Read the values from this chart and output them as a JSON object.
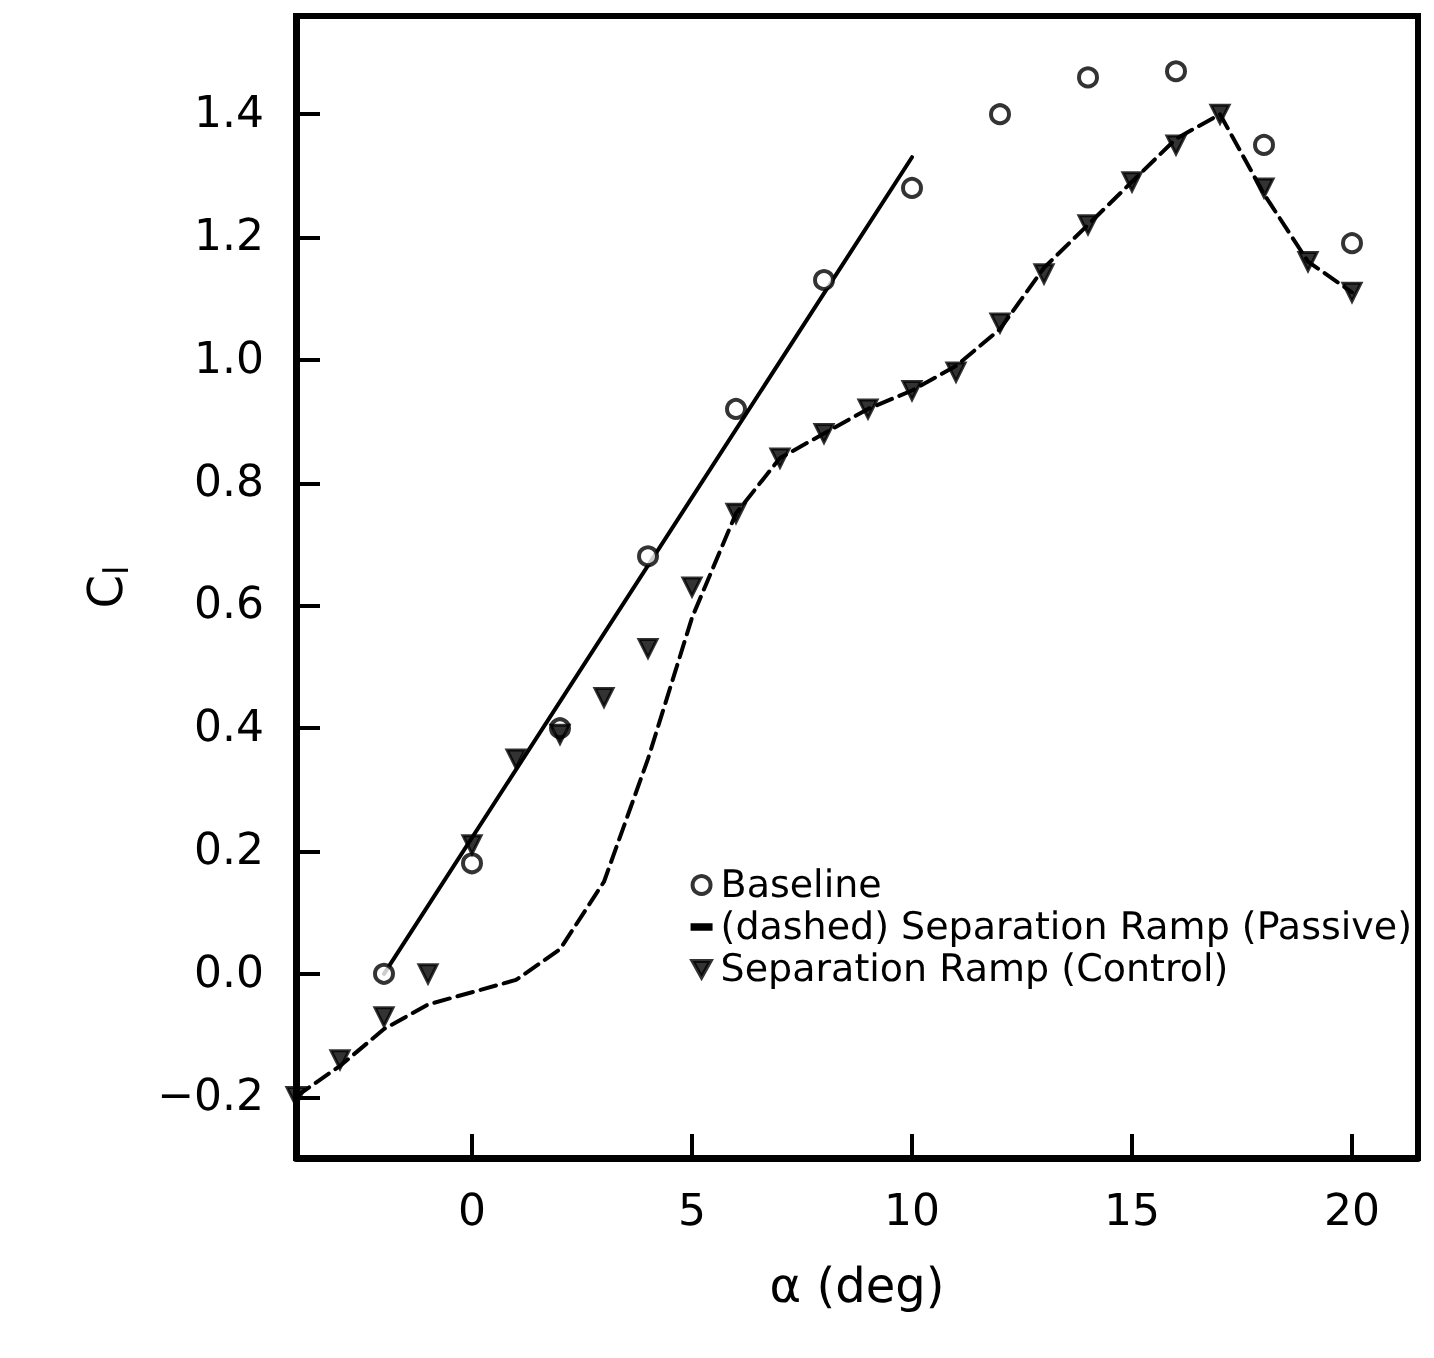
{
  "chart_data": {
    "type": "scatter",
    "xlabel": "α (deg)",
    "ylabel": "C$_{l}$",
    "xlim": [
      -4,
      21.5
    ],
    "ylim": [
      -0.3,
      1.56
    ],
    "xticks": [
      0,
      5,
      10,
      15,
      20
    ],
    "yticks": [
      {
        "value": -0.2,
        "label": "−0.2"
      },
      {
        "value": 0,
        "label": "0.0"
      },
      {
        "value": 0.2,
        "label": "0.2"
      },
      {
        "value": 0.4,
        "label": "0.4"
      },
      {
        "value": 0.6,
        "label": "0.6"
      },
      {
        "value": 0.8,
        "label": "0.8"
      },
      {
        "value": 1.0,
        "label": "1.0"
      },
      {
        "value": 1.2,
        "label": "1.2"
      },
      {
        "value": 1.4,
        "label": "1.4"
      }
    ],
    "grid": false,
    "legend": "bottom right",
    "series": [
      {
        "name": "Baseline",
        "marker": "circle",
        "color": "#000000",
        "x": [
          -2,
          0,
          2,
          4,
          6,
          8,
          10,
          12,
          14,
          16,
          18,
          20
        ],
        "values": [
          0.0,
          0.18,
          0.4,
          0.68,
          0.92,
          1.13,
          1.28,
          1.4,
          1.46,
          1.47,
          1.35,
          1.19
        ]
      },
      {
        "name": "(dashed) Separation Ramp (Passive)",
        "type": "line",
        "marker": "none",
        "line_style": "dashed",
        "color": "#000000",
        "x": [
          -4,
          -3,
          -2,
          -1,
          0,
          1,
          2,
          3,
          4,
          5,
          6,
          7,
          8,
          9,
          10,
          11,
          12,
          13,
          14,
          15,
          16,
          17,
          18,
          19,
          20
        ],
        "values": [
          -0.2,
          -0.15,
          -0.09,
          -0.05,
          -0.03,
          -0.01,
          0.04,
          0.15,
          0.35,
          0.58,
          0.75,
          0.84,
          0.88,
          0.92,
          0.95,
          0.99,
          1.05,
          1.15,
          1.22,
          1.29,
          1.36,
          1.4,
          1.27,
          1.16,
          1.11
        ]
      },
      {
        "name": "Separation Ramp (Control)",
        "marker": "triangle",
        "color": "#000000",
        "x": [
          -4,
          -3,
          -2,
          -1,
          0,
          1,
          2,
          3,
          4,
          5,
          6,
          7,
          8,
          9,
          10,
          11,
          12,
          13,
          14,
          15,
          16,
          17,
          18,
          19,
          20
        ],
        "values": [
          -0.2,
          -0.14,
          -0.07,
          0.0,
          0.21,
          0.35,
          0.39,
          0.45,
          0.53,
          0.63,
          0.75,
          0.84,
          0.88,
          0.92,
          0.95,
          0.98,
          1.06,
          1.14,
          1.22,
          1.29,
          1.35,
          1.4,
          1.28,
          1.16,
          1.11
        ]
      },
      {
        "type": "line",
        "marker": "none",
        "line_style": "solid",
        "color": "#000000",
        "x": [
          -2,
          10
        ],
        "values": [
          0.0,
          1.33
        ]
      }
    ]
  }
}
